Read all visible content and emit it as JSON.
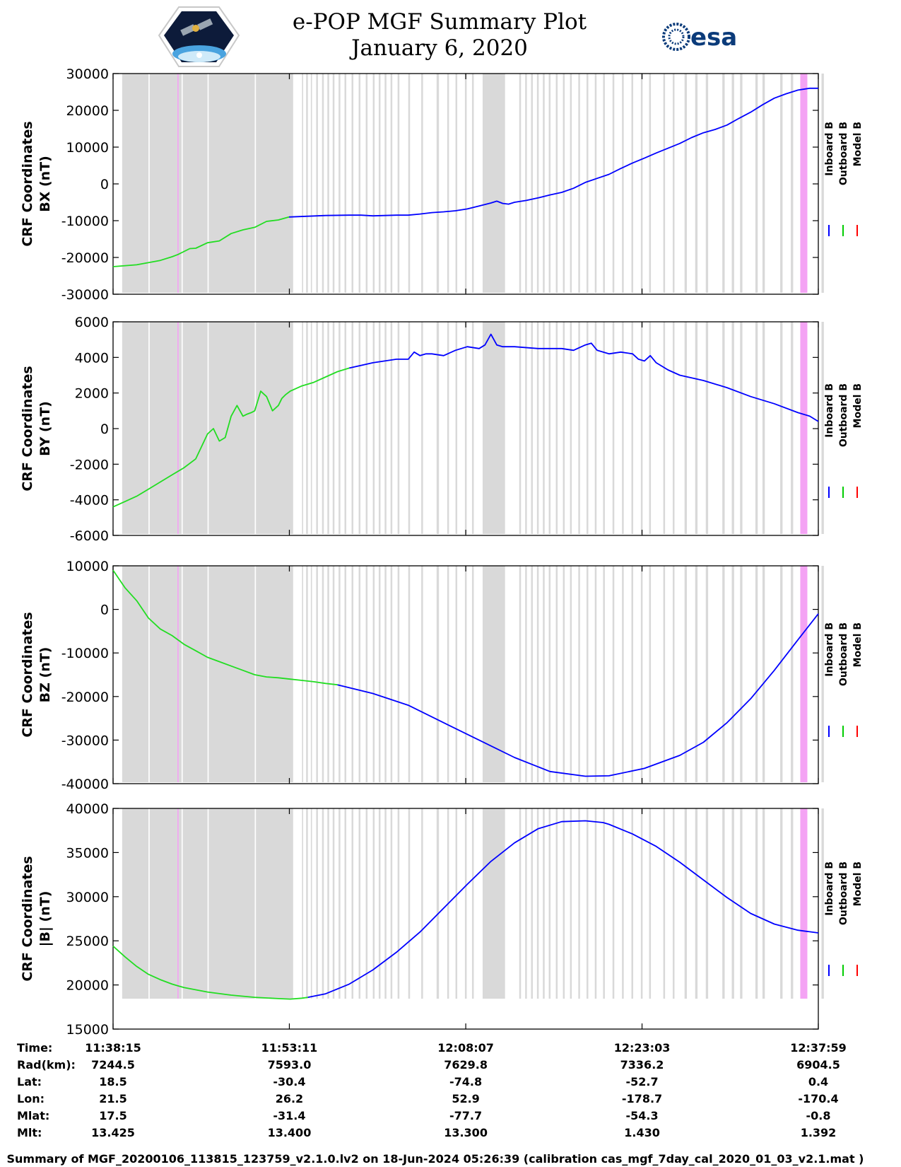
{
  "header": {
    "title_line1": "e-POP MGF Summary Plot",
    "title_line2": "January 6, 2020",
    "esa_logo_text": "esa"
  },
  "legend": {
    "entries": [
      {
        "label": "Inboard B",
        "color": "#0000ff"
      },
      {
        "label": "Outboard B",
        "color": "#00cc00"
      },
      {
        "label": "Model B",
        "color": "#ff0000"
      }
    ]
  },
  "colors": {
    "inboard": "#0000ff",
    "outboard": "#22dd22",
    "model": "#ff0000",
    "gap_shading": "#d9d9d9",
    "event_marker": "#f4a3f4"
  },
  "shading": {
    "gray_spans_min": [
      [
        0.77,
        15.25
      ],
      [
        16.0,
        16.1
      ],
      [
        16.35,
        16.5
      ],
      [
        16.75,
        16.85
      ],
      [
        17.2,
        17.35
      ],
      [
        17.7,
        17.85
      ],
      [
        18.15,
        18.3
      ],
      [
        18.6,
        18.75
      ],
      [
        19.1,
        19.25
      ],
      [
        19.6,
        19.75
      ],
      [
        20.2,
        20.35
      ],
      [
        20.8,
        20.95
      ],
      [
        21.4,
        21.55
      ],
      [
        22.0,
        22.15
      ],
      [
        22.5,
        22.65
      ],
      [
        23.0,
        23.15
      ],
      [
        23.5,
        23.65
      ],
      [
        24.1,
        24.25
      ],
      [
        25.0,
        25.15
      ],
      [
        26.1,
        26.25
      ],
      [
        27.4,
        27.6
      ],
      [
        28.3,
        28.45
      ],
      [
        29.0,
        29.15
      ],
      [
        29.8,
        29.95
      ],
      [
        30.4,
        30.55
      ],
      [
        31.3,
        33.2
      ],
      [
        34.4,
        34.55
      ],
      [
        34.9,
        35.05
      ],
      [
        35.4,
        35.55
      ],
      [
        35.9,
        36.05
      ],
      [
        36.4,
        36.55
      ],
      [
        36.9,
        37.05
      ],
      [
        37.5,
        37.65
      ],
      [
        38.1,
        38.25
      ],
      [
        38.7,
        38.85
      ],
      [
        39.4,
        39.55
      ],
      [
        40.1,
        40.25
      ],
      [
        40.8,
        40.95
      ],
      [
        41.5,
        41.65
      ],
      [
        42.3,
        42.45
      ],
      [
        43.1,
        43.25
      ],
      [
        43.9,
        44.05
      ],
      [
        44.7,
        44.85
      ],
      [
        45.4,
        45.55
      ],
      [
        46.6,
        46.75
      ],
      [
        47.4,
        47.55
      ],
      [
        48.4,
        48.6
      ],
      [
        49.3,
        49.5
      ],
      [
        50.2,
        50.4
      ],
      [
        51.6,
        51.8
      ],
      [
        52.4,
        52.6
      ],
      [
        53.1,
        53.3
      ],
      [
        54.4,
        54.6
      ],
      [
        55.0,
        55.2
      ],
      [
        56.5,
        56.7
      ],
      [
        57.4,
        57.6
      ],
      [
        58.3,
        58.5
      ],
      [
        60.0,
        60.2
      ]
    ],
    "white_gaps_min": [
      [
        3.0,
        3.1
      ],
      [
        5.8,
        5.9
      ],
      [
        8.0,
        8.1
      ],
      [
        12.0,
        12.1
      ]
    ],
    "event_spans_min": [
      [
        5.45,
        5.55
      ],
      [
        58.2,
        58.8
      ]
    ]
  },
  "chart_data": [
    {
      "type": "line",
      "panel": "BX",
      "ylabel_line1": "CRF Coordinates",
      "ylabel_line2": "BX (nT)",
      "ylim": [
        -30000,
        30000
      ],
      "yticks": [
        -30000,
        -20000,
        -10000,
        0,
        10000,
        20000,
        30000
      ],
      "xlim_min": [
        0,
        59.73
      ],
      "series": [
        {
          "name": "Outboard B",
          "x_min": [
            0,
            2,
            4,
            5,
            5.5,
            6.5,
            7,
            8,
            9,
            10,
            11,
            12,
            13,
            14,
            14.9
          ],
          "values": [
            -22500,
            -22000,
            -20800,
            -19800,
            -19200,
            -17600,
            -17500,
            -16000,
            -15500,
            -13500,
            -12500,
            -11800,
            -10200,
            -9800,
            -9000
          ]
        },
        {
          "name": "Inboard B",
          "x_min": [
            14.9,
            18,
            20,
            21,
            22,
            24,
            25,
            26,
            27,
            28,
            29,
            30,
            31,
            32,
            32.5,
            33,
            33.5,
            34,
            35,
            36,
            37,
            38,
            39,
            40,
            41,
            42,
            43,
            44,
            45,
            46,
            47,
            48,
            49,
            50,
            51,
            52,
            53,
            54,
            55,
            56,
            57,
            58,
            59,
            59.73
          ],
          "values": [
            -9000,
            -8600,
            -8500,
            -8500,
            -8700,
            -8500,
            -8500,
            -8200,
            -7800,
            -7600,
            -7300,
            -6800,
            -6000,
            -5200,
            -4700,
            -5300,
            -5500,
            -5000,
            -4500,
            -3800,
            -3000,
            -2300,
            -1200,
            400,
            1500,
            2600,
            4200,
            5700,
            7000,
            8400,
            9700,
            11000,
            12600,
            13900,
            14800,
            16000,
            17800,
            19500,
            21500,
            23300,
            24500,
            25500,
            26000,
            26000
          ]
        }
      ]
    },
    {
      "type": "line",
      "panel": "BY",
      "ylabel_line1": "CRF Coordinates",
      "ylabel_line2": "BY (nT)",
      "ylim": [
        -6000,
        6000
      ],
      "yticks": [
        -6000,
        -4000,
        -2000,
        0,
        2000,
        4000,
        6000
      ],
      "xlim_min": [
        0,
        59.73
      ],
      "series": [
        {
          "name": "Outboard B",
          "x_min": [
            0,
            1,
            2,
            3,
            4,
            5,
            6,
            7,
            7.5,
            8,
            8.5,
            9,
            9.5,
            10,
            10.5,
            11,
            11.3,
            11.7,
            12,
            12.5,
            13,
            13.5,
            14,
            14.3,
            14.6,
            15,
            16,
            17,
            18,
            19,
            20
          ],
          "values": [
            -4400,
            -4100,
            -3800,
            -3400,
            -3000,
            -2600,
            -2200,
            -1700,
            -1000,
            -300,
            0,
            -700,
            -500,
            700,
            1300,
            700,
            800,
            900,
            1000,
            2100,
            1800,
            1000,
            1300,
            1700,
            1900,
            2100,
            2400,
            2600,
            2900,
            3200,
            3400
          ]
        },
        {
          "name": "Inboard B",
          "x_min": [
            20,
            22,
            24,
            25,
            25.5,
            26,
            26.5,
            27,
            28,
            29,
            30,
            31,
            31.5,
            32,
            32.5,
            33,
            33.5,
            34,
            36,
            38,
            39,
            40,
            40.5,
            41,
            42,
            43,
            44,
            44.5,
            45,
            45.5,
            46,
            47,
            48,
            50,
            52,
            54,
            56,
            58,
            59,
            59.73
          ],
          "values": [
            3400,
            3700,
            3900,
            3900,
            4300,
            4100,
            4200,
            4200,
            4100,
            4400,
            4600,
            4500,
            4700,
            5300,
            4700,
            4600,
            4600,
            4600,
            4500,
            4500,
            4400,
            4700,
            4800,
            4400,
            4200,
            4300,
            4200,
            3900,
            3800,
            4100,
            3700,
            3300,
            3000,
            2700,
            2300,
            1800,
            1400,
            900,
            700,
            400
          ]
        }
      ]
    },
    {
      "type": "line",
      "panel": "BZ",
      "ylabel_line1": "CRF Coordinates",
      "ylabel_line2": "BZ (nT)",
      "ylim": [
        -40000,
        10000
      ],
      "yticks": [
        -40000,
        -30000,
        -20000,
        -10000,
        0,
        10000
      ],
      "xlim_min": [
        0,
        59.73
      ],
      "series": [
        {
          "name": "Outboard B",
          "x_min": [
            0,
            1,
            2,
            3,
            4,
            5,
            6,
            7,
            8,
            9,
            10,
            11,
            12,
            13,
            14,
            15,
            16,
            17,
            18,
            19
          ],
          "values": [
            9000,
            5000,
            2000,
            -2000,
            -4500,
            -6000,
            -8000,
            -9500,
            -11000,
            -12000,
            -13000,
            -14000,
            -15000,
            -15500,
            -15700,
            -16000,
            -16300,
            -16600,
            -17000,
            -17300
          ]
        },
        {
          "name": "Inboard B",
          "x_min": [
            19,
            22,
            25,
            28,
            31,
            34,
            37,
            40,
            42,
            45,
            48,
            50,
            52,
            54,
            56,
            58,
            59.73
          ],
          "values": [
            -17300,
            -19300,
            -22000,
            -26000,
            -30000,
            -34000,
            -37200,
            -38300,
            -38200,
            -36500,
            -33500,
            -30500,
            -26000,
            -20500,
            -14000,
            -7000,
            -1000
          ]
        }
      ]
    },
    {
      "type": "line",
      "panel": "|B|",
      "ylabel_line1": "CRF Coordinates",
      "ylabel_line2": "|B| (nT)",
      "ylim": [
        15000,
        40000
      ],
      "yticks": [
        15000,
        20000,
        25000,
        30000,
        35000,
        40000
      ],
      "xlim_min": [
        0,
        59.73
      ],
      "series": [
        {
          "name": "Outboard B",
          "x_min": [
            0,
            1,
            2,
            3,
            4,
            5,
            6,
            8,
            10,
            12,
            14,
            15,
            16,
            16.5
          ],
          "values": [
            24400,
            23200,
            22100,
            21200,
            20600,
            20100,
            19700,
            19200,
            18850,
            18600,
            18450,
            18400,
            18500,
            18600
          ]
        },
        {
          "name": "Inboard B",
          "x_min": [
            16.5,
            18,
            20,
            22,
            24,
            26,
            28,
            30,
            32,
            34,
            36,
            38,
            40,
            41.5,
            42,
            44,
            46,
            48,
            50,
            52,
            54,
            56,
            58,
            59.73
          ],
          "values": [
            18600,
            19000,
            20100,
            21700,
            23700,
            26000,
            28700,
            31400,
            34000,
            36100,
            37700,
            38500,
            38600,
            38400,
            38200,
            37100,
            35700,
            33900,
            31900,
            29900,
            28100,
            26900,
            26200,
            25900
          ]
        }
      ]
    }
  ],
  "table": {
    "row_labels": [
      "Time:",
      "Rad(km):",
      "Lat:",
      "Lon:",
      "Mlat:",
      "Mlt:"
    ],
    "columns": [
      {
        "x_min": 0,
        "values": [
          "11:38:15",
          "7244.5",
          "18.5",
          "21.5",
          "17.5",
          "13.425"
        ]
      },
      {
        "x_min": 14.93,
        "values": [
          "11:53:11",
          "7593.0",
          "-30.4",
          "26.2",
          "-31.4",
          "13.400"
        ]
      },
      {
        "x_min": 29.87,
        "values": [
          "12:08:07",
          "7629.8",
          "-74.8",
          "52.9",
          "-77.7",
          "13.300"
        ]
      },
      {
        "x_min": 44.8,
        "values": [
          "12:23:03",
          "7336.2",
          "-52.7",
          "-178.7",
          "-54.3",
          "1.430"
        ]
      },
      {
        "x_min": 59.73,
        "values": [
          "12:37:59",
          "6904.5",
          "0.4",
          "-170.4",
          "-0.8",
          "1.392"
        ]
      }
    ]
  },
  "footer": {
    "text": "Summary of MGF_20200106_113815_123759_v2.1.0.lv2 on 18-Jun-2024 05:26:39 (calibration cas_mgf_7day_cal_2020_01_03_v2.1.mat )"
  }
}
